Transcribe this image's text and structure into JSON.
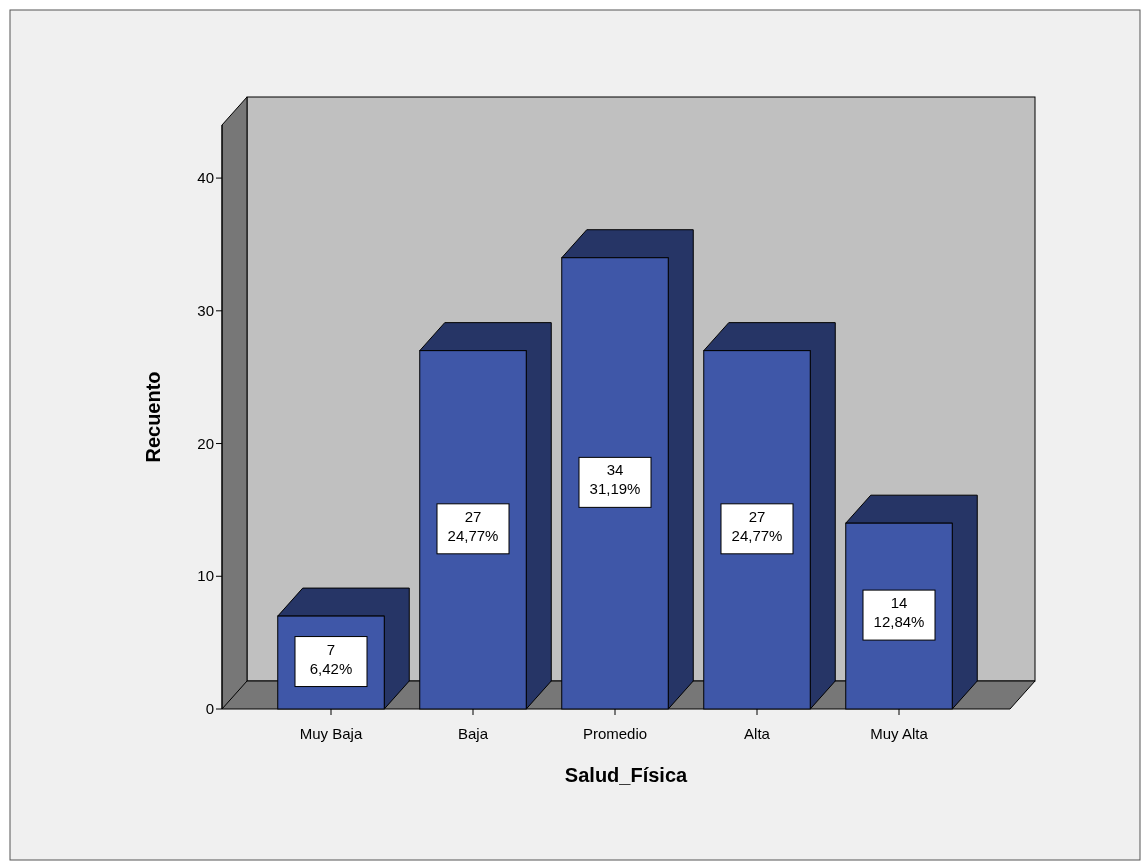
{
  "chart_data": {
    "type": "bar",
    "xlabel": "Salud_Física",
    "ylabel": "Recuento",
    "categories": [
      "Muy Baja",
      "Baja",
      "Promedio",
      "Alta",
      "Muy Alta"
    ],
    "values": [
      7,
      27,
      34,
      27,
      14
    ],
    "value_labels": [
      "7\n6,42%",
      "27\n24,77%",
      "34\n31,19%",
      "27\n24,77%",
      "14\n12,84%"
    ],
    "color": "#3f57a8",
    "ylim": [
      0,
      44
    ],
    "yticks": [
      0,
      10,
      20,
      30,
      40
    ],
    "grid": false
  }
}
